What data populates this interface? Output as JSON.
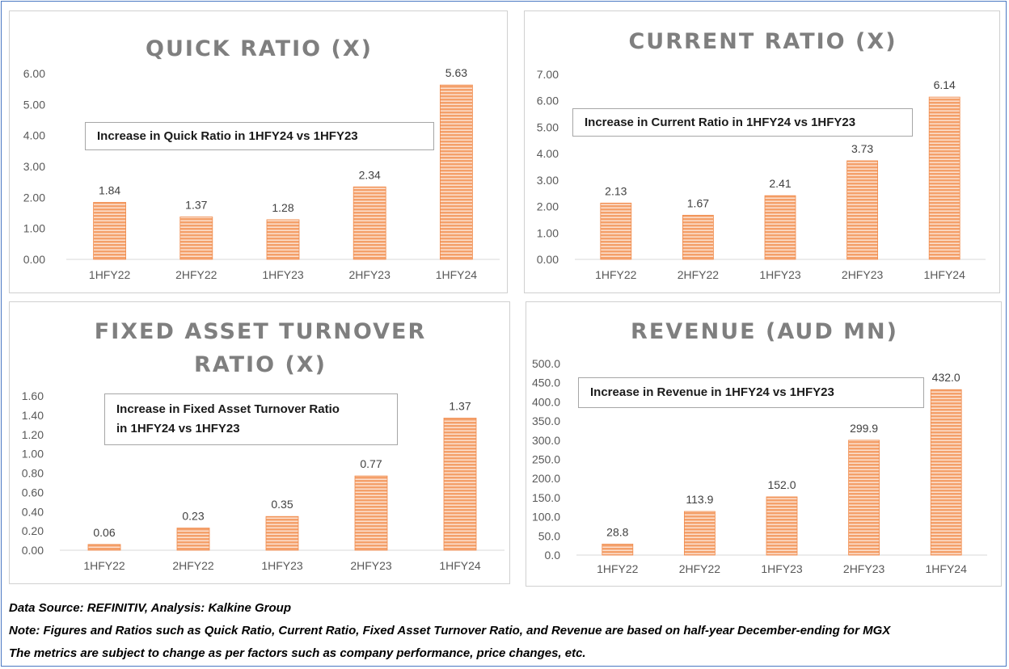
{
  "colors": {
    "bar_fill": "#f4a06a",
    "bar_stripe": "#ffffff",
    "axis_line": "#d9d9d9",
    "title": "#7f7f7f",
    "frame_border": "#4a78c2"
  },
  "chart_data": [
    {
      "type": "bar",
      "title": "QUICK RATIO (X)",
      "categories": [
        "1HFY22",
        "2HFY22",
        "1HFY23",
        "2HFY23",
        "1HFY24"
      ],
      "values": [
        1.84,
        1.37,
        1.28,
        2.34,
        5.63
      ],
      "value_labels": [
        "1.84",
        "1.37",
        "1.28",
        "2.34",
        "5.63"
      ],
      "yticks": [
        "0.00",
        "1.00",
        "2.00",
        "3.00",
        "4.00",
        "5.00",
        "6.00"
      ],
      "ylim": [
        0,
        6
      ],
      "grid": false,
      "callout": [
        "Increase in Quick Ratio in 1HFY24 vs 1HFY23"
      ]
    },
    {
      "type": "bar",
      "title": "CURRENT RATIO (X)",
      "categories": [
        "1HFY22",
        "2HFY22",
        "1HFY23",
        "2HFY23",
        "1HFY24"
      ],
      "values": [
        2.13,
        1.67,
        2.41,
        3.73,
        6.14
      ],
      "value_labels": [
        "2.13",
        "1.67",
        "2.41",
        "3.73",
        "6.14"
      ],
      "yticks": [
        "0.00",
        "1.00",
        "2.00",
        "3.00",
        "4.00",
        "5.00",
        "6.00",
        "7.00"
      ],
      "ylim": [
        0,
        7
      ],
      "grid": false,
      "callout": [
        "Increase in Current Ratio in 1HFY24 vs 1HFY23"
      ]
    },
    {
      "type": "bar",
      "title": [
        "FIXED ASSET TURNOVER",
        "RATIO (X)"
      ],
      "categories": [
        "1HFY22",
        "2HFY22",
        "1HFY23",
        "2HFY23",
        "1HFY24"
      ],
      "values": [
        0.06,
        0.23,
        0.35,
        0.77,
        1.37
      ],
      "value_labels": [
        "0.06",
        "0.23",
        "0.35",
        "0.77",
        "1.37"
      ],
      "yticks": [
        "0.00",
        "0.20",
        "0.40",
        "0.60",
        "0.80",
        "1.00",
        "1.20",
        "1.40",
        "1.60"
      ],
      "ylim": [
        0,
        1.6
      ],
      "grid": false,
      "callout": [
        "Increase in Fixed Asset Turnover Ratio",
        "in 1HFY24 vs 1HFY23"
      ]
    },
    {
      "type": "bar",
      "title": "REVENUE (AUD MN)",
      "categories": [
        "1HFY22",
        "2HFY22",
        "1HFY23",
        "2HFY23",
        "1HFY24"
      ],
      "values": [
        28.8,
        113.9,
        152.0,
        299.9,
        432.0
      ],
      "value_labels": [
        "28.8",
        "113.9",
        "152.0",
        "299.9",
        "432.0"
      ],
      "yticks": [
        "0.0",
        "50.0",
        "100.0",
        "150.0",
        "200.0",
        "250.0",
        "300.0",
        "350.0",
        "400.0",
        "450.0",
        "500.0"
      ],
      "ylim": [
        0,
        500
      ],
      "grid": false,
      "callout": [
        "Increase in Revenue in 1HFY24 vs 1HFY23"
      ]
    }
  ],
  "notes": {
    "source": "Data Source: REFINITIV, Analysis: Kalkine Group",
    "note": "Note: Figures and Ratios such as Quick Ratio, Current Ratio, Fixed Asset Turnover Ratio, and Revenue are based on half-year December-ending for MGX",
    "disclaimer": "The metrics are subject to change as per factors such as company performance, price changes, etc."
  }
}
